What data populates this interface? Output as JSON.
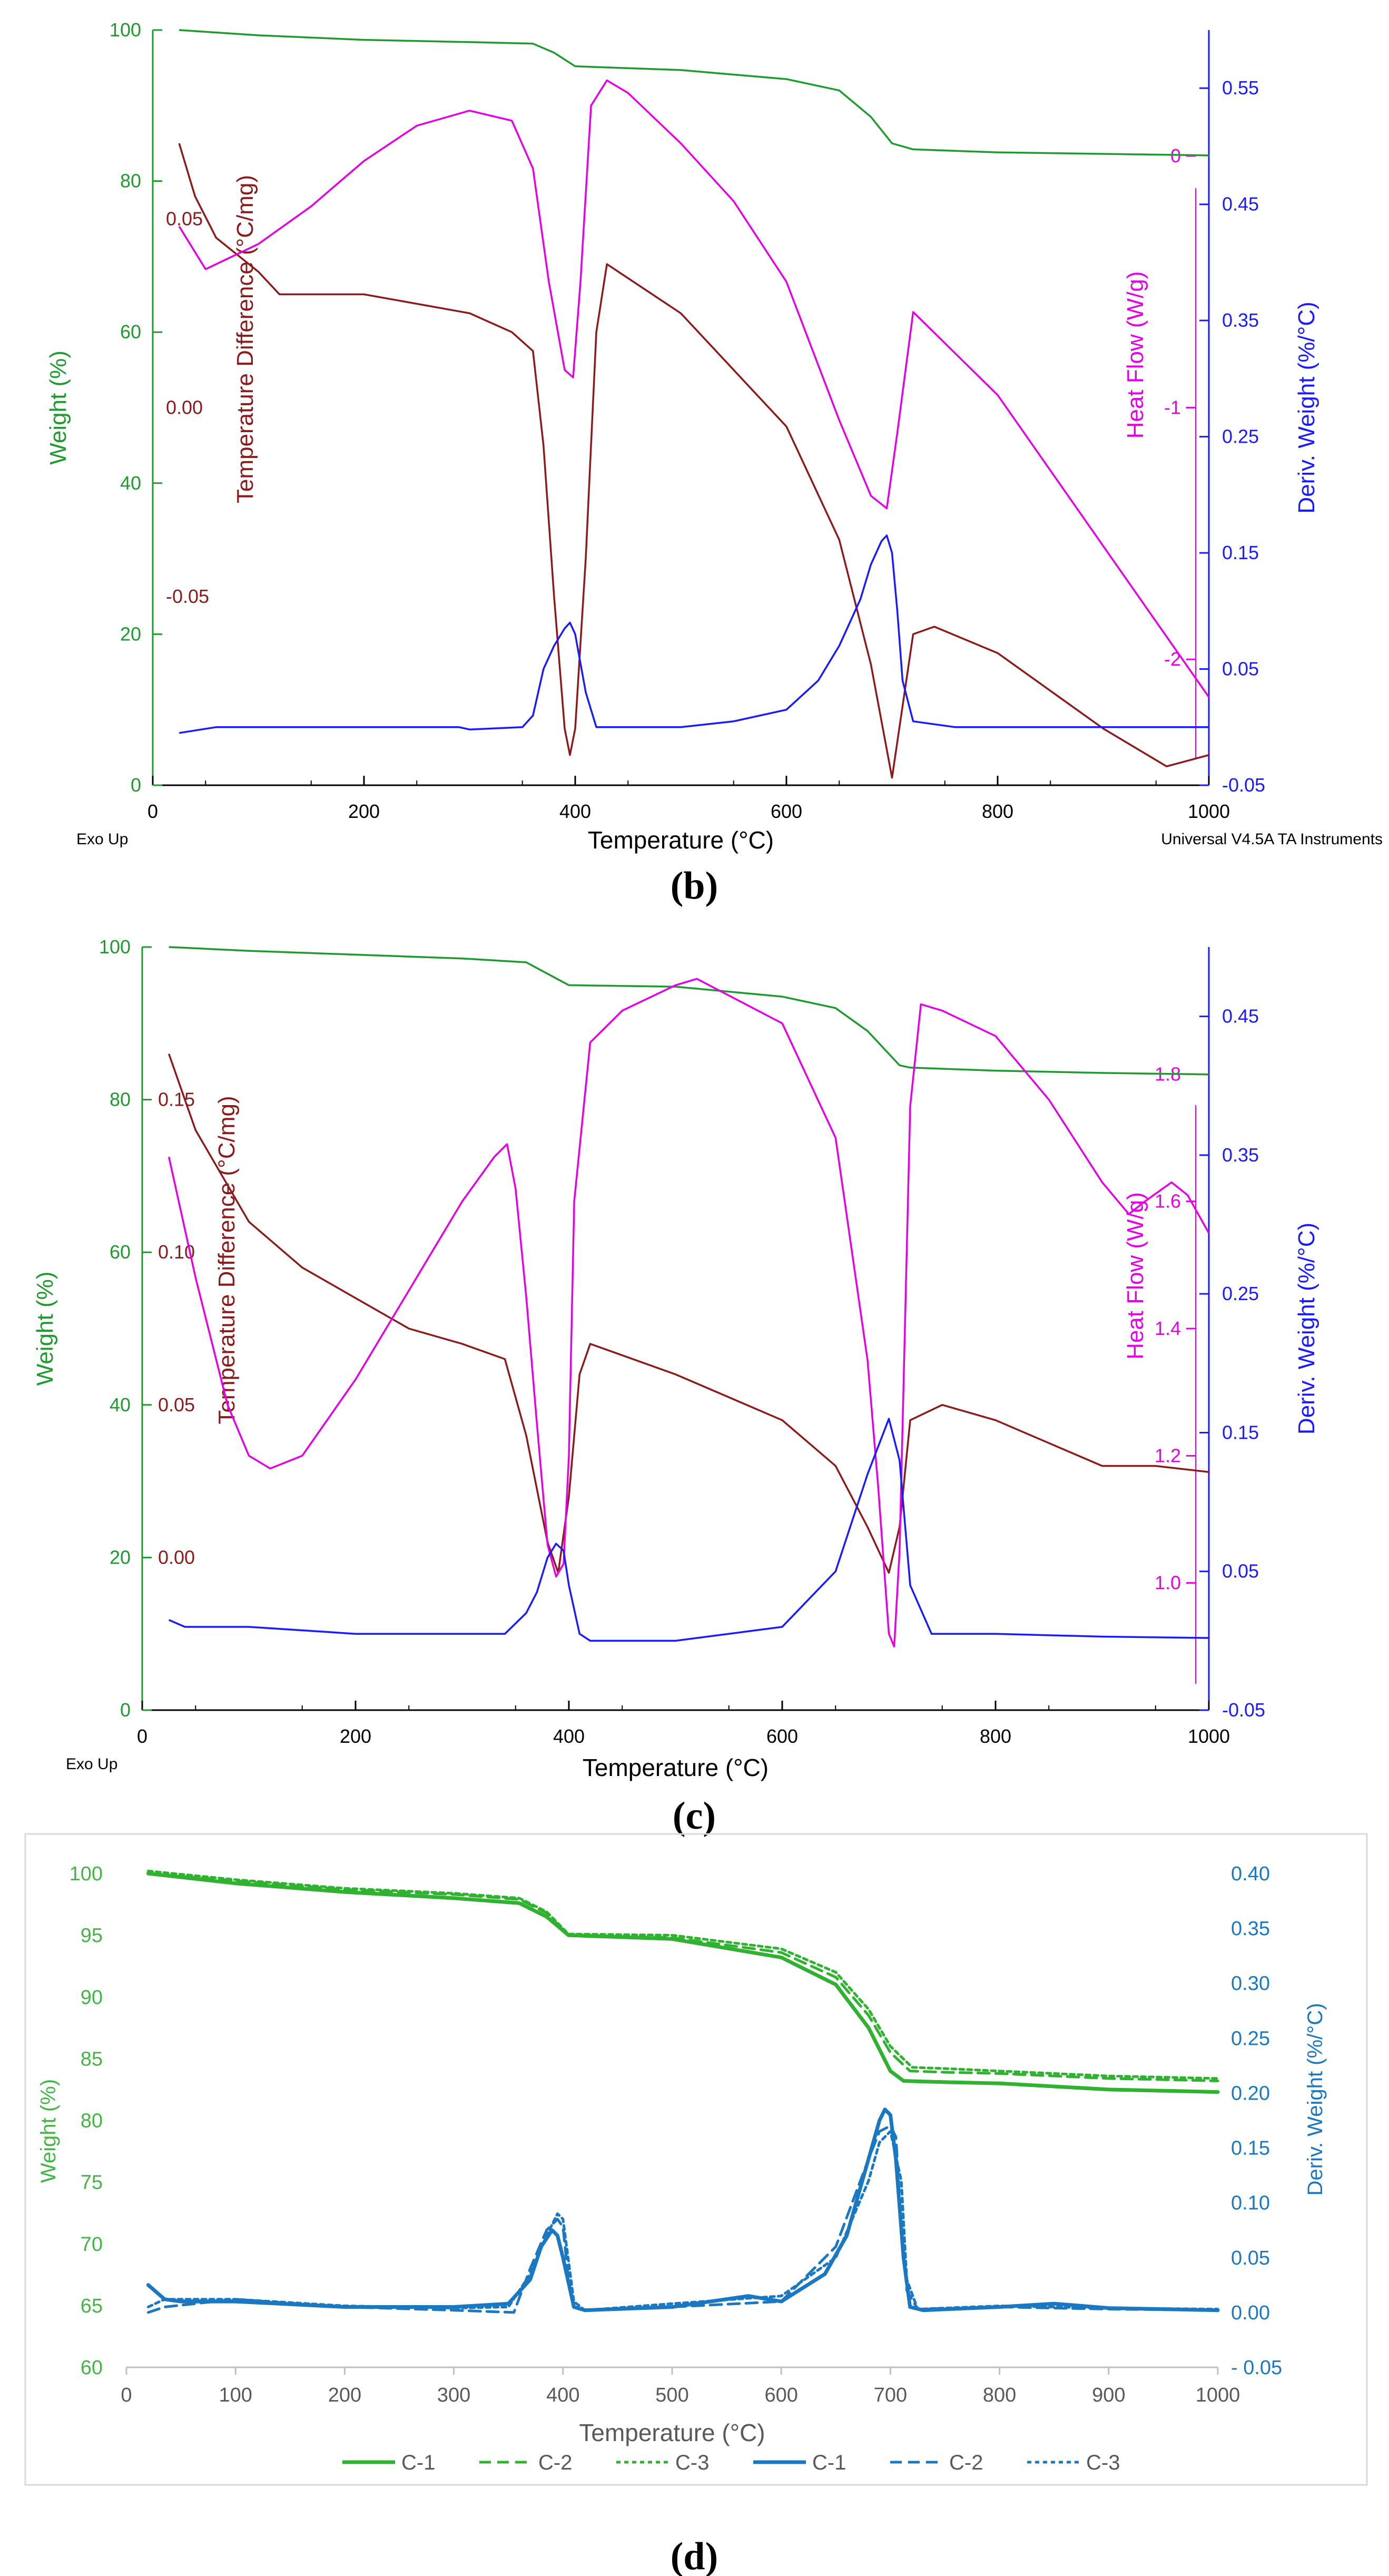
{
  "colors": {
    "weight": "#1f9a2e",
    "temp_diff": "#8b1a1a",
    "heat_flow": "#e600e6",
    "deriv": "#1a1aff",
    "d_weight": "#2fb22f",
    "d_deriv": "#1a78c2",
    "d_axis_weight": "#44b544",
    "d_axis_deriv": "#1a78c2"
  },
  "chart_data": [
    {
      "type": "line",
      "panel": "b",
      "caption": "(b)",
      "xlabel": "Temperature (°C)",
      "xlim": [
        0,
        1000
      ],
      "x_ticks": [
        "0",
        "200",
        "400",
        "600",
        "800",
        "1000"
      ],
      "left_axis": {
        "label": "Weight (%)",
        "ylim": [
          0,
          100
        ],
        "ticks": [
          "0",
          "20",
          "40",
          "60",
          "80",
          "100"
        ]
      },
      "inner_left_axis": {
        "label": "Temperature Difference (°C/mg)",
        "ylim": [
          -0.1,
          0.1
        ],
        "ticks": [
          "-0.05",
          "0.00",
          "0.05"
        ]
      },
      "inner_right_axis": {
        "label": "Heat Flow (W/g)",
        "ylim": [
          -2.5,
          0.5
        ],
        "ticks": [
          "-2",
          "-1",
          "0"
        ]
      },
      "right_axis": {
        "label": "Deriv. Weight (%/°C)",
        "ylim": [
          -0.05,
          0.6
        ],
        "ticks": [
          "-0.05",
          "0.05",
          "0.15",
          "0.25",
          "0.35",
          "0.45",
          "0.55"
        ]
      },
      "corner_left": "Exo Up",
      "corner_right": "Universal V4.5A TA Instruments",
      "series": [
        {
          "name": "Weight (%)",
          "axis": "left",
          "x": [
            25,
            100,
            200,
            300,
            360,
            380,
            400,
            420,
            500,
            600,
            650,
            680,
            700,
            720,
            800,
            900,
            1000
          ],
          "values": [
            100,
            99.3,
            98.7,
            98.4,
            98.2,
            97,
            95.2,
            95.1,
            94.7,
            93.5,
            92,
            88.5,
            85,
            84.2,
            83.8,
            83.6,
            83.4
          ]
        },
        {
          "name": "Temperature Difference",
          "axis": "inner_left",
          "x": [
            25,
            40,
            60,
            100,
            120,
            200,
            300,
            340,
            360,
            370,
            380,
            390,
            395,
            400,
            410,
            420,
            430,
            500,
            600,
            650,
            680,
            700,
            720,
            740,
            800,
            900,
            960,
            1000
          ],
          "values": [
            0.07,
            0.056,
            0.045,
            0.036,
            0.03,
            0.03,
            0.025,
            0.02,
            0.015,
            -0.01,
            -0.05,
            -0.085,
            -0.092,
            -0.085,
            -0.04,
            0.02,
            0.038,
            0.025,
            -0.005,
            -0.035,
            -0.068,
            -0.098,
            -0.06,
            -0.058,
            -0.065,
            -0.085,
            -0.095,
            -0.092
          ]
        },
        {
          "name": "Heat Flow",
          "axis": "inner_right",
          "x": [
            25,
            50,
            100,
            150,
            200,
            250,
            300,
            340,
            360,
            375,
            390,
            398,
            405,
            415,
            430,
            450,
            500,
            550,
            600,
            650,
            680,
            695,
            705,
            720,
            800,
            900,
            1000
          ],
          "values": [
            -0.28,
            -0.45,
            -0.35,
            -0.2,
            -0.02,
            0.12,
            0.18,
            0.14,
            -0.05,
            -0.5,
            -0.85,
            -0.88,
            -0.5,
            0.2,
            0.3,
            0.25,
            0.05,
            -0.18,
            -0.5,
            -1.05,
            -1.35,
            -1.4,
            -1.1,
            -0.62,
            -0.95,
            -1.55,
            -2.15
          ]
        },
        {
          "name": "Deriv. Weight",
          "axis": "right",
          "x": [
            25,
            60,
            100,
            150,
            200,
            250,
            290,
            300,
            350,
            360,
            370,
            380,
            390,
            395,
            400,
            410,
            420,
            500,
            550,
            600,
            630,
            650,
            670,
            680,
            690,
            695,
            700,
            705,
            710,
            720,
            760,
            800,
            900,
            1000
          ],
          "values": [
            -0.005,
            0,
            0,
            0,
            0,
            0,
            0,
            -0.002,
            0,
            0.01,
            0.05,
            0.07,
            0.085,
            0.09,
            0.08,
            0.03,
            0,
            0,
            0.005,
            0.015,
            0.04,
            0.07,
            0.11,
            0.14,
            0.16,
            0.165,
            0.15,
            0.1,
            0.04,
            0.005,
            0,
            0,
            0,
            0
          ]
        }
      ]
    },
    {
      "type": "line",
      "panel": "c",
      "caption": "(c)",
      "xlabel": "Temperature (°C)",
      "xlim": [
        0,
        1000
      ],
      "x_ticks": [
        "0",
        "200",
        "400",
        "600",
        "800",
        "1000"
      ],
      "left_axis": {
        "label": "Weight (%)",
        "ylim": [
          0,
          100
        ],
        "ticks": [
          "0",
          "20",
          "40",
          "60",
          "80",
          "100"
        ]
      },
      "inner_left_axis": {
        "label": "Temperature Difference (°C/mg)",
        "ylim": [
          -0.05,
          0.2
        ],
        "ticks": [
          "0.00",
          "0.05",
          "0.10",
          "0.15"
        ]
      },
      "inner_right_axis": {
        "label": "Heat Flow (W/g)",
        "ylim": [
          0.8,
          2.0
        ],
        "ticks": [
          "1.0",
          "1.2",
          "1.4",
          "1.6",
          "1.8"
        ]
      },
      "right_axis": {
        "label": "Deriv. Weight (%/°C)",
        "ylim": [
          -0.05,
          0.5
        ],
        "ticks": [
          "-0.05",
          "0.05",
          "0.15",
          "0.25",
          "0.35",
          "0.45"
        ]
      },
      "corner_left": "Exo Up",
      "series": [
        {
          "name": "Weight (%)",
          "axis": "left",
          "x": [
            25,
            100,
            200,
            300,
            360,
            380,
            400,
            500,
            600,
            650,
            680,
            700,
            710,
            720,
            800,
            900,
            1000
          ],
          "values": [
            100,
            99.5,
            99,
            98.5,
            98,
            96.5,
            95,
            94.8,
            93.5,
            92,
            89,
            86,
            84.5,
            84.2,
            83.8,
            83.5,
            83.3
          ]
        },
        {
          "name": "Temperature Difference",
          "axis": "inner_left",
          "x": [
            25,
            50,
            100,
            150,
            200,
            250,
            300,
            340,
            360,
            380,
            390,
            400,
            410,
            420,
            500,
            600,
            650,
            680,
            700,
            710,
            720,
            750,
            800,
            900,
            950,
            1000
          ],
          "values": [
            0.165,
            0.14,
            0.11,
            0.095,
            0.085,
            0.075,
            0.07,
            0.065,
            0.04,
            0.005,
            -0.005,
            0.02,
            0.06,
            0.07,
            0.06,
            0.045,
            0.03,
            0.01,
            -0.005,
            0.01,
            0.045,
            0.05,
            0.045,
            0.03,
            0.03,
            0.028
          ]
        },
        {
          "name": "Heat Flow",
          "axis": "inner_right",
          "x": [
            25,
            50,
            80,
            100,
            120,
            150,
            200,
            250,
            300,
            330,
            342,
            350,
            360,
            370,
            380,
            388,
            395,
            400,
            405,
            420,
            450,
            500,
            520,
            600,
            650,
            680,
            690,
            700,
            705,
            710,
            720,
            730,
            750,
            800,
            850,
            900,
            925,
            940,
            965,
            980,
            1000
          ],
          "values": [
            1.67,
            1.48,
            1.28,
            1.2,
            1.18,
            1.2,
            1.32,
            1.46,
            1.6,
            1.67,
            1.69,
            1.62,
            1.45,
            1.25,
            1.06,
            1.01,
            1.03,
            1.2,
            1.6,
            1.85,
            1.9,
            1.94,
            1.95,
            1.88,
            1.7,
            1.35,
            1.15,
            0.92,
            0.9,
            1.05,
            1.75,
            1.91,
            1.9,
            1.86,
            1.76,
            1.63,
            1.58,
            1.6,
            1.63,
            1.61,
            1.55
          ]
        },
        {
          "name": "Deriv. Weight",
          "axis": "right",
          "x": [
            25,
            40,
            100,
            200,
            300,
            340,
            360,
            370,
            380,
            388,
            395,
            400,
            410,
            420,
            500,
            600,
            650,
            680,
            700,
            710,
            720,
            740,
            800,
            900,
            1000
          ],
          "values": [
            0.015,
            0.01,
            0.01,
            0.005,
            0.005,
            0.005,
            0.02,
            0.035,
            0.06,
            0.07,
            0.065,
            0.04,
            0.005,
            0,
            0,
            0.01,
            0.05,
            0.12,
            0.16,
            0.13,
            0.04,
            0.005,
            0.005,
            0.003,
            0.002
          ]
        }
      ]
    },
    {
      "type": "line",
      "panel": "d",
      "caption": "(d)",
      "xlabel": "Temperature (°C)",
      "xlim": [
        0,
        1000
      ],
      "x_ticks": [
        "0",
        "100",
        "200",
        "300",
        "400",
        "500",
        "600",
        "700",
        "800",
        "900",
        "1000"
      ],
      "left_axis": {
        "label": "Weight (%)",
        "ylim": [
          60,
          100
        ],
        "ticks": [
          "60",
          "65",
          "70",
          "75",
          "80",
          "85",
          "90",
          "95",
          "100"
        ]
      },
      "right_axis": {
        "label": "Deriv. Weight (%/°C)",
        "ylim": [
          -0.05,
          0.4
        ],
        "ticks": [
          "- 0.05",
          "0.00",
          "0.05",
          "0.10",
          "0.15",
          "0.20",
          "0.25",
          "0.30",
          "0.35",
          "0.40"
        ]
      },
      "legend": [
        "C-1",
        "C-2",
        "C-3",
        "C-1",
        "C-2",
        "C-3"
      ],
      "legend_position": "bottom",
      "series": [
        {
          "name": "C-1",
          "axis": "left",
          "style": "solid",
          "x": [
            20,
            100,
            200,
            300,
            360,
            385,
            405,
            500,
            600,
            650,
            680,
            700,
            712,
            750,
            800,
            900,
            1000
          ],
          "values": [
            100,
            99.2,
            98.5,
            98,
            97.6,
            96.5,
            95,
            94.7,
            93.2,
            91,
            87.5,
            84,
            83.2,
            83.1,
            83,
            82.5,
            82.3
          ]
        },
        {
          "name": "C-2",
          "axis": "left",
          "style": "dashed",
          "x": [
            20,
            100,
            200,
            300,
            360,
            385,
            405,
            500,
            600,
            650,
            680,
            700,
            718,
            750,
            800,
            900,
            1000
          ],
          "values": [
            100,
            99.4,
            98.7,
            98.3,
            97.9,
            96.8,
            95,
            94.8,
            93.6,
            91.6,
            88.5,
            85.5,
            84,
            83.9,
            83.8,
            83.4,
            83.2
          ]
        },
        {
          "name": "C-3",
          "axis": "left",
          "style": "dotted",
          "x": [
            20,
            100,
            200,
            300,
            360,
            385,
            405,
            500,
            600,
            650,
            680,
            700,
            720,
            750,
            800,
            900,
            1000
          ],
          "values": [
            100.2,
            99.5,
            98.8,
            98.4,
            98,
            96.9,
            95.1,
            95,
            93.9,
            92,
            89,
            86,
            84.3,
            84.2,
            84,
            83.6,
            83.4
          ]
        },
        {
          "name": "C-1",
          "axis": "right",
          "style": "solid",
          "x": [
            20,
            35,
            50,
            100,
            200,
            300,
            350,
            370,
            380,
            390,
            395,
            400,
            410,
            420,
            500,
            570,
            600,
            640,
            660,
            680,
            690,
            695,
            700,
            705,
            712,
            718,
            730,
            800,
            850,
            900,
            1000
          ],
          "values": [
            0.025,
            0.012,
            0.01,
            0.01,
            0.005,
            0.005,
            0.008,
            0.03,
            0.06,
            0.075,
            0.07,
            0.05,
            0.005,
            0.002,
            0.005,
            0.015,
            0.01,
            0.035,
            0.07,
            0.14,
            0.175,
            0.185,
            0.18,
            0.14,
            0.05,
            0.005,
            0.002,
            0.005,
            0.008,
            0.004,
            0.002
          ]
        },
        {
          "name": "C-2",
          "axis": "right",
          "style": "dashed",
          "x": [
            20,
            35,
            100,
            200,
            300,
            355,
            370,
            385,
            395,
            400,
            405,
            410,
            420,
            500,
            600,
            650,
            680,
            690,
            700,
            705,
            710,
            715,
            725,
            800,
            900,
            1000
          ],
          "values": [
            0.0,
            0.005,
            0.012,
            0.005,
            0.002,
            0.0,
            0.04,
            0.075,
            0.085,
            0.078,
            0.03,
            0.005,
            0.002,
            0.005,
            0.01,
            0.06,
            0.14,
            0.165,
            0.17,
            0.16,
            0.08,
            0.02,
            0.003,
            0.005,
            0.003,
            0.002
          ]
        },
        {
          "name": "C-3",
          "axis": "right",
          "style": "dotted",
          "x": [
            20,
            35,
            100,
            200,
            300,
            350,
            370,
            385,
            395,
            400,
            410,
            420,
            500,
            600,
            650,
            680,
            690,
            700,
            710,
            715,
            725,
            800,
            900,
            1000
          ],
          "values": [
            0.005,
            0.012,
            0.012,
            0.006,
            0.004,
            0.005,
            0.035,
            0.07,
            0.09,
            0.085,
            0.01,
            0.002,
            0.008,
            0.015,
            0.05,
            0.12,
            0.155,
            0.165,
            0.12,
            0.03,
            0.003,
            0.006,
            0.004,
            0.003
          ]
        }
      ]
    }
  ]
}
